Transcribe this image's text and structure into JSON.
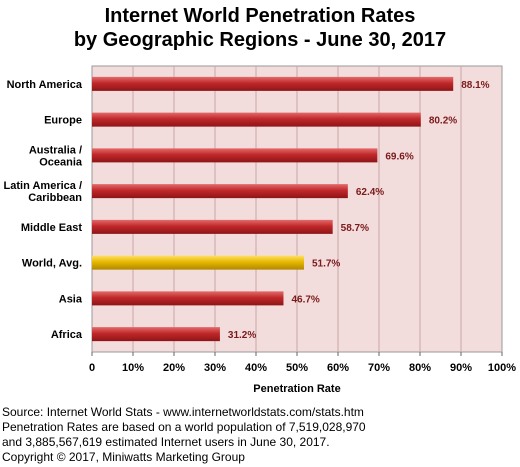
{
  "chart_data": {
    "type": "bar",
    "orientation": "horizontal",
    "title_line1": "Internet World Penetration Rates",
    "title_line2": "by Geographic Regions - June 30, 2017",
    "xlabel": "Penetration Rate",
    "ylabel": "",
    "xlim": [
      0,
      100
    ],
    "x_ticks": [
      "0",
      "10%",
      "20%",
      "30%",
      "40%",
      "50%",
      "60%",
      "70%",
      "80%",
      "90%",
      "100%"
    ],
    "grid": true,
    "categories": [
      [
        "North America"
      ],
      [
        "Europe"
      ],
      [
        "Australia /",
        "Oceania"
      ],
      [
        "Latin America /",
        "Caribbean"
      ],
      [
        "Middle East"
      ],
      [
        "World, Avg."
      ],
      [
        "Asia"
      ],
      [
        "Africa"
      ]
    ],
    "values": [
      88.1,
      80.2,
      69.6,
      62.4,
      58.7,
      51.7,
      46.7,
      31.2
    ],
    "value_labels": [
      "88.1%",
      "80.2%",
      "69.6%",
      "62.4%",
      "58.7%",
      "51.7%",
      "46.7%",
      "31.2%"
    ],
    "highlight_index": 5,
    "colors": {
      "bar": "#c0282a",
      "bar_highlight": "#e6b800",
      "plot_background": "#f3dcdc",
      "value_label": "#7a1a1a"
    }
  },
  "footer": {
    "line1": "Source: Internet World Stats - www.internetworldstats.com/stats.htm",
    "line2": "Penetration Rates are based on a world population of 7,519,028,970",
    "line3": "and 3,885,567,619 estimated Internet users in June 30, 2017.",
    "line4": "Copyright © 2017, Miniwatts Marketing Group"
  }
}
